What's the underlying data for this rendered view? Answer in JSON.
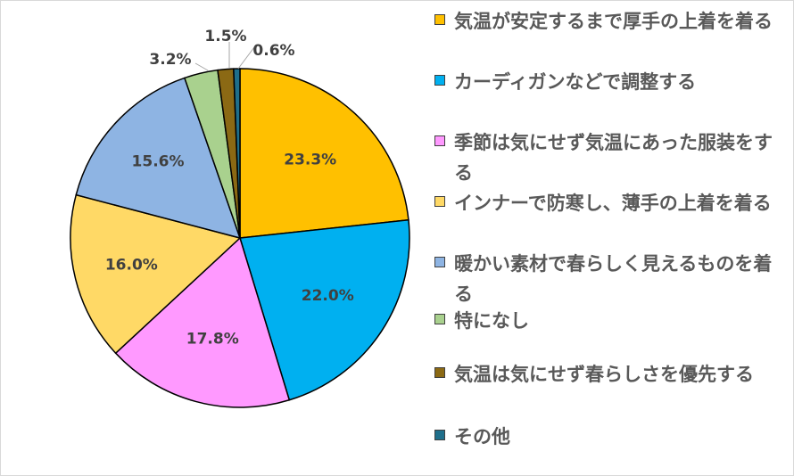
{
  "chart_data": {
    "type": "pie",
    "title": "",
    "legend_position": "right",
    "slices": [
      {
        "label": "気温が安定するまで厚手の上着を着る",
        "value": 23.3,
        "value_label": "23.3%",
        "color": "#FFC000"
      },
      {
        "label": "カーディガンなどで調整する",
        "value": 22.0,
        "value_label": "22.0%",
        "color": "#00B0F0"
      },
      {
        "label": "季節は気にせず気温にあった服装をする",
        "value": 17.8,
        "value_label": "17.8%",
        "color": "#FF99FF"
      },
      {
        "label": "インナーで防寒し、薄手の上着を着る",
        "value": 16.0,
        "value_label": "16.0%",
        "color": "#FFD966"
      },
      {
        "label": "暖かい素材で春らしく見えるものを着る",
        "value": 15.6,
        "value_label": "15.6%",
        "color": "#8EB4E3"
      },
      {
        "label": "特になし",
        "value": 3.2,
        "value_label": "3.2%",
        "color": "#A9D18E"
      },
      {
        "label": "気温は気にせず春らしさを優先する",
        "value": 1.5,
        "value_label": "1.5%",
        "color": "#8B6914"
      },
      {
        "label": "その他",
        "value": 0.6,
        "value_label": "0.6%",
        "color": "#1F6F8B"
      }
    ]
  }
}
